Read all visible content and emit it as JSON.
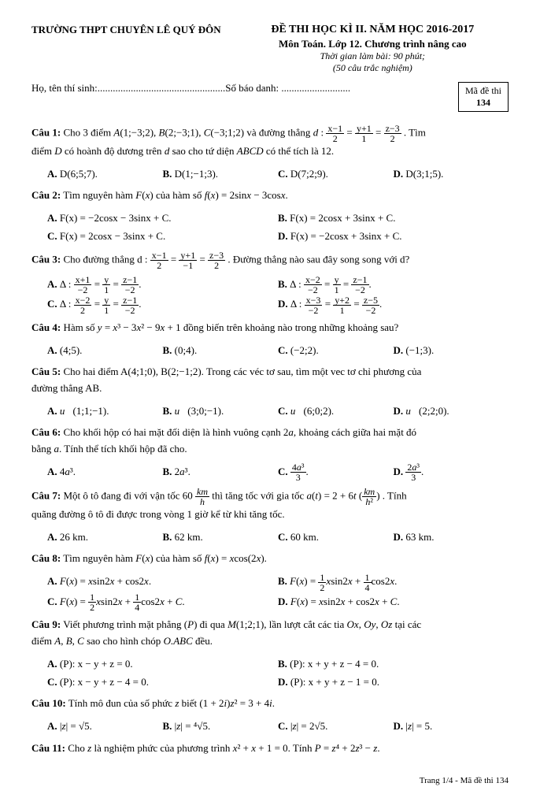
{
  "header": {
    "school": "TRƯỜNG THPT CHUYÊN LÊ QUÝ ĐÔN",
    "exam_title": "ĐỀ THI HỌC KÌ II. NĂM HỌC 2016-2017",
    "subject": "Môn Toán. Lớp 12. Chương trình nâng cao",
    "time": "Thời gian làm bài: 90 phút;",
    "count": "(50 câu trắc nghiệm)",
    "name_label": "Họ, tên thí sinh:",
    "sbd_label": "Số báo danh:",
    "code_label": "Mã đề thi",
    "code": "134"
  },
  "q1": {
    "no": "Câu 1:",
    "text1": "Cho 3 điểm A(1;−3;2), B(2;−3;1), C(−3;1;2) và đường thẳng d :",
    "text2": ". Tìm",
    "text3": "điểm D có hoành độ dương trên d sao cho tứ diện ABCD có thể tích là 12.",
    "A": "D(6;5;7).",
    "B": "D(1;−1;3).",
    "C": "D(7;2;9).",
    "D": "D(3;1;5)."
  },
  "q2": {
    "no": "Câu 2:",
    "text": "Tìm nguyên hàm F(x) của hàm số f(x) = 2sinx − 3cosx.",
    "A": "F(x) = −2cosx − 3sinx + C.",
    "B": "F(x) = 2cosx + 3sinx + C.",
    "C": "F(x) = 2cosx − 3sinx + C.",
    "D": "F(x) = −2cosx + 3sinx + C."
  },
  "q3": {
    "no": "Câu 3:",
    "text1": "Cho đường thẳng d :",
    "text2": ". Đường thẳng nào sau đây song song với d?"
  },
  "q4": {
    "no": "Câu 4:",
    "text": "Hàm số y = x³ − 3x² − 9x + 1 đồng biến trên khoảng nào trong những khoảng sau?",
    "A": "(4;5).",
    "B": "(0;4).",
    "C": "(−2;2).",
    "D": "(−1;3)."
  },
  "q5": {
    "no": "Câu 5:",
    "text1": "Cho hai điểm A(4;1;0), B(2;−1;2). Trong các véc tơ sau, tìm một vec tơ chỉ phương của",
    "text2": "đường thẳng AB.",
    "A": "u⃗(1;1;−1).",
    "B": "u⃗(3;0;−1).",
    "C": "u⃗(6;0;2).",
    "D": "u⃗(2;2;0)."
  },
  "q6": {
    "no": "Câu 6:",
    "text1": "Cho khối hộp có hai mặt đối diện là hình vuông cạnh 2a, khoảng cách giữa hai mặt đó",
    "text2": "bằng a. Tính thể tích khối hộp đã cho.",
    "A": "4a³.",
    "B": "2a³."
  },
  "q7": {
    "no": "Câu 7:",
    "text1": "Một ô tô đang đi với vận tốc 60",
    "text2": "thì tăng tốc với gia tốc a(t) = 2 + 6t",
    "text3": ". Tính",
    "text4": "quãng đường ô tô đi được trong vòng 1 giờ kể từ khi tăng tốc.",
    "A": "26 km.",
    "B": "62 km.",
    "C": "60 km.",
    "D": "63 km."
  },
  "q8": {
    "no": "Câu 8:",
    "text": "Tìm nguyên hàm F(x) của hàm số f(x) = xcos(2x).",
    "A": "F(x) = xsin2x + cos2x.",
    "D": "F(x) = xsin2x + cos2x + C."
  },
  "q9": {
    "no": "Câu 9:",
    "text1": "Viết phương trình mặt phẳng (P) đi qua M(1;2;1), lần lượt cắt các tia Ox, Oy, Oz tại các",
    "text2": "điểm A, B, C sao cho hình chóp O.ABC đều.",
    "A": "(P): x − y + z = 0.",
    "B": "(P): x + y + z − 4 = 0.",
    "C": "(P): x − y + z − 4 = 0.",
    "D": "(P): x + y + z − 1 = 0."
  },
  "q10": {
    "no": "Câu 10:",
    "text": "Tính mô đun của số phức z biết (1 + 2i)z² = 3 + 4i.",
    "A": "|z| = √5.",
    "B": "|z| = ⁴√5.",
    "C": "|z| = 2√5.",
    "D": "|z| = 5."
  },
  "q11": {
    "no": "Câu 11:",
    "text": "Cho z là nghiệm phức của phương trình x² + x + 1 = 0. Tính P = z⁴ + 2z³ − z."
  },
  "footer": "Trang 1/4 - Mã đề thi 134"
}
